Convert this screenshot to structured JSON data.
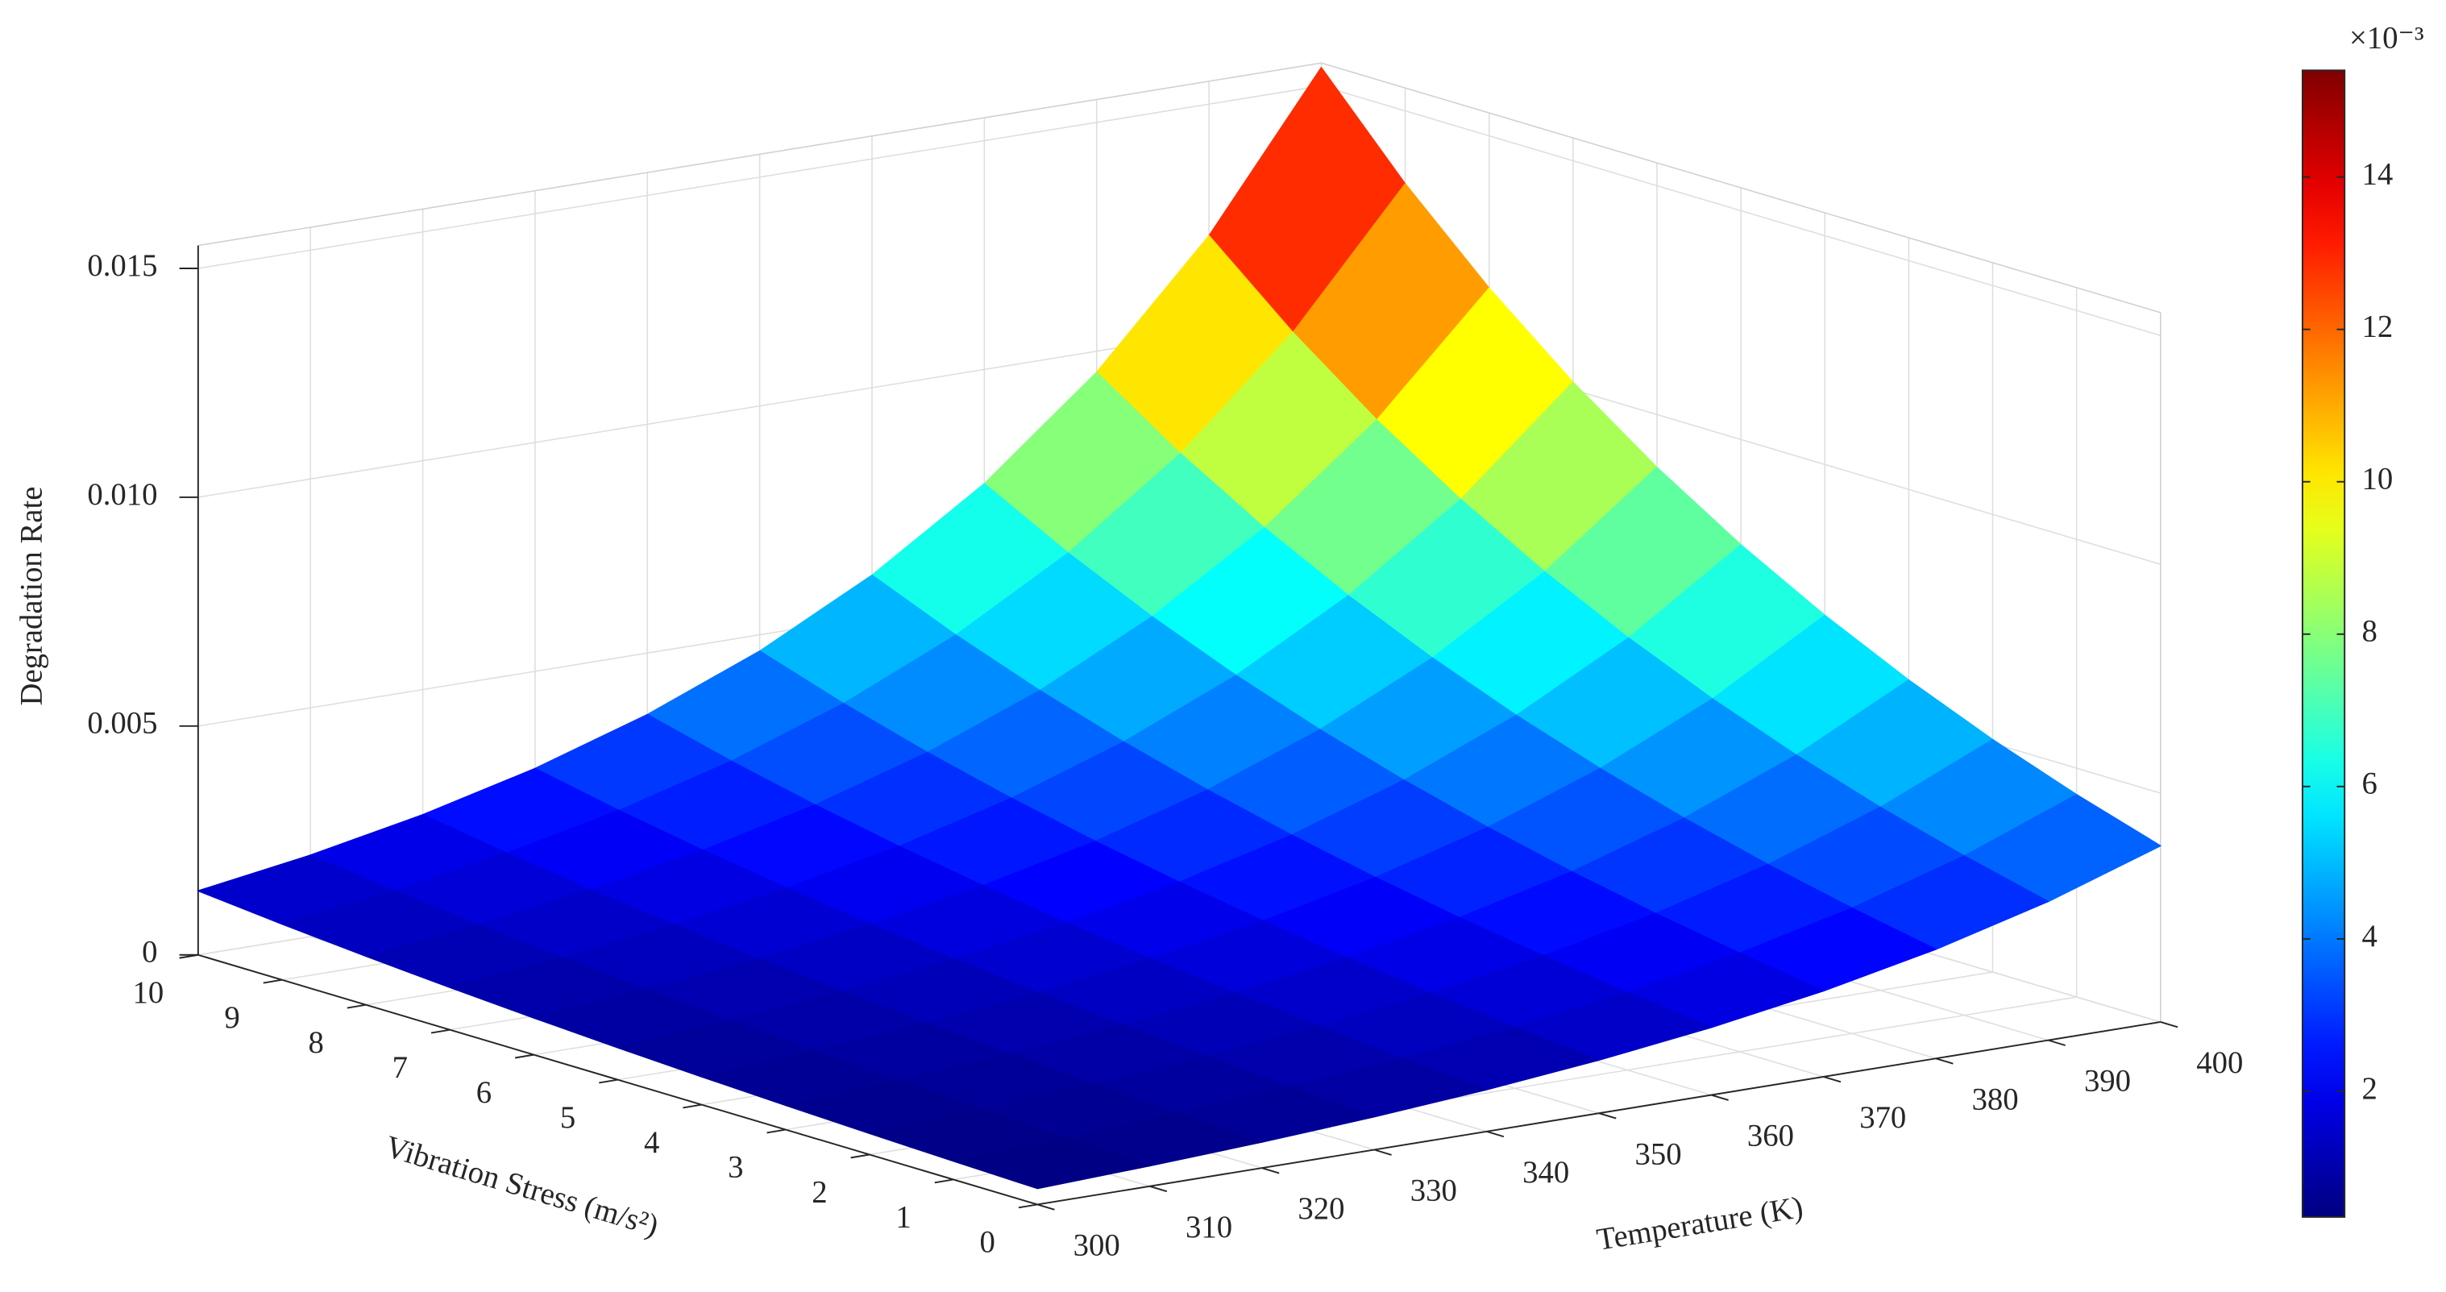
{
  "chart_data": {
    "type": "surface",
    "zlabel": "Degradation Rate",
    "xlabel": "Temperature (K)",
    "ylabel": "Vibration Stress (m/s²)",
    "x": [
      300,
      310,
      320,
      330,
      340,
      350,
      360,
      370,
      380,
      390,
      400
    ],
    "y": [
      0,
      1,
      2,
      3,
      4,
      5,
      6,
      7,
      8,
      9,
      10
    ],
    "z": [
      [
        0.00035,
        0.000445,
        0.000566,
        0.000719,
        0.000914,
        0.001161,
        0.001476,
        0.001876,
        0.002385,
        0.003031,
        0.00385
      ],
      [
        0.000402,
        0.000511,
        0.00065,
        0.000826,
        0.00105,
        0.001334,
        0.001695,
        0.002155,
        0.00274,
        0.003482,
        0.004422
      ],
      [
        0.000462,
        0.000587,
        0.000747,
        0.000949,
        0.001206,
        0.001532,
        0.001948,
        0.002475,
        0.003147,
        0.003999,
        0.00508
      ],
      [
        0.00053,
        0.000674,
        0.000858,
        0.00109,
        0.001385,
        0.00176,
        0.002237,
        0.002843,
        0.003615,
        0.004594,
        0.005835
      ],
      [
        0.000609,
        0.000775,
        0.000985,
        0.001252,
        0.001591,
        0.002021,
        0.00257,
        0.003266,
        0.004153,
        0.005277,
        0.006703
      ],
      [
        0.0007,
        0.00089,
        0.001132,
        0.001438,
        0.001828,
        0.002322,
        0.002952,
        0.003752,
        0.00477,
        0.006062,
        0.0077
      ],
      [
        0.000804,
        0.001022,
        0.0013,
        0.001652,
        0.0021,
        0.002667,
        0.003391,
        0.00431,
        0.005479,
        0.006963,
        0.008845
      ],
      [
        0.000924,
        0.001174,
        0.001494,
        0.001897,
        0.002412,
        0.003064,
        0.003895,
        0.004951,
        0.006294,
        0.007999,
        0.01016
      ],
      [
        0.001061,
        0.001349,
        0.001716,
        0.00218,
        0.002771,
        0.003519,
        0.004474,
        0.005687,
        0.00723,
        0.009188,
        0.011671
      ],
      [
        0.001219,
        0.00155,
        0.001971,
        0.002504,
        0.003183,
        0.004043,
        0.00514,
        0.006533,
        0.008305,
        0.010555,
        0.013406
      ],
      [
        0.0014,
        0.00178,
        0.002264,
        0.002876,
        0.003656,
        0.004644,
        0.005904,
        0.007504,
        0.00954,
        0.012124,
        0.0154
      ]
    ],
    "xlim": [
      300,
      400
    ],
    "xticks": [
      300,
      310,
      320,
      330,
      340,
      350,
      360,
      370,
      380,
      390,
      400
    ],
    "ylim": [
      0,
      10
    ],
    "yticks": [
      0,
      1,
      2,
      3,
      4,
      5,
      6,
      7,
      8,
      9,
      10
    ],
    "zlim": [
      0,
      0.0155
    ],
    "zticks": [
      0,
      0.005,
      {
        "value": 0.01,
        "label": "0.010"
      },
      0.015
    ],
    "grid": true,
    "colormap": "jet",
    "colorbar": {
      "clim": [
        0.00035,
        0.0154
      ],
      "ticks": [
        {
          "value": 0.002,
          "label": "2"
        },
        {
          "value": 0.004,
          "label": "4"
        },
        {
          "value": 0.006,
          "label": "6"
        },
        {
          "value": 0.008,
          "label": "8"
        },
        {
          "value": 0.01,
          "label": "10"
        },
        {
          "value": 0.012,
          "label": "12"
        },
        {
          "value": 0.014,
          "label": "14"
        }
      ],
      "exponent_label": "×10⁻³"
    }
  }
}
